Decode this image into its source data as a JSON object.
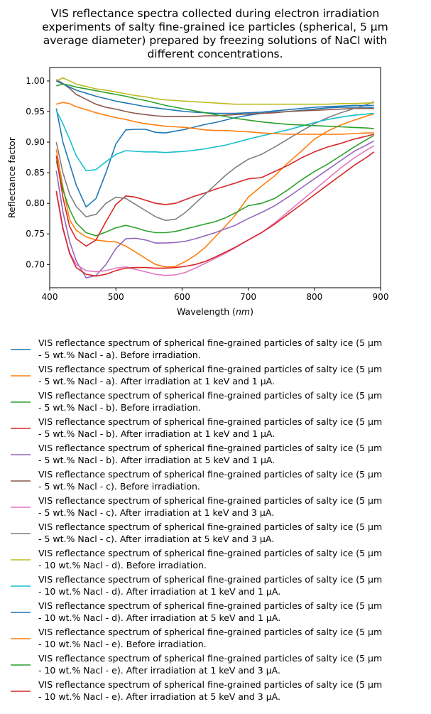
{
  "chart_data": {
    "type": "line",
    "title_lines": [
      "VIS reflectance spectra collected during electron irradiation",
      "experiments of salty fine-grained ice particles (spherical, 5 µm",
      "average diameter) prepared by freezing solutions of NaCl with",
      "different concentrations."
    ],
    "xlabel": "Wavelength (nm)",
    "xlabel_parts": {
      "prefix": "Wavelength (",
      "unit": "nm",
      "suffix": ")"
    },
    "ylabel": "Reflectance factor",
    "xlim": [
      400,
      900
    ],
    "ylim": [
      0.662,
      1.022
    ],
    "xticks": [
      400,
      500,
      600,
      700,
      800,
      900
    ],
    "yticks": [
      0.7,
      0.75,
      0.8,
      0.85,
      0.9,
      0.95,
      1.0
    ],
    "ytick_labels": [
      "0.70",
      "0.75",
      "0.80",
      "0.85",
      "0.90",
      "0.95",
      "1.00"
    ],
    "grid": false,
    "legend_position": "below",
    "series": [
      {
        "name_lines": [
          "VIS reflectance spectrum of spherical fine-grained particles of salty ice (5 µm",
          "- 5 wt.% Nacl - a). Before irradiation."
        ],
        "color": "#1f77b4",
        "x": [
          410,
          420,
          430,
          440,
          455,
          470,
          485,
          500,
          515,
          530,
          545,
          560,
          575,
          590,
          605,
          620,
          635,
          650,
          665,
          680,
          700,
          720,
          740,
          760,
          780,
          800,
          820,
          840,
          860,
          880,
          890
        ],
        "y": [
          0.955,
          0.9,
          0.865,
          0.83,
          0.794,
          0.808,
          0.85,
          0.897,
          0.92,
          0.921,
          0.921,
          0.916,
          0.915,
          0.918,
          0.921,
          0.925,
          0.929,
          0.932,
          0.936,
          0.94,
          0.944,
          0.947,
          0.949,
          0.95,
          0.952,
          0.954,
          0.956,
          0.957,
          0.957,
          0.957,
          0.956
        ]
      },
      {
        "name_lines": [
          "VIS reflectance spectrum of spherical fine-grained particles of salty ice (5 µm",
          "- 5 wt.% Nacl - a). After irradiation at 1 keV and 1 µA."
        ],
        "color": "#ff7f0e",
        "x": [
          410,
          420,
          430,
          440,
          455,
          470,
          485,
          500,
          515,
          530,
          545,
          560,
          575,
          590,
          605,
          620,
          635,
          650,
          665,
          680,
          700,
          720,
          740,
          760,
          780,
          800,
          820,
          840,
          860,
          880,
          890
        ],
        "y": [
          0.888,
          0.827,
          0.773,
          0.756,
          0.745,
          0.74,
          0.738,
          0.737,
          0.73,
          0.72,
          0.71,
          0.7,
          0.696,
          0.697,
          0.705,
          0.715,
          0.728,
          0.745,
          0.762,
          0.78,
          0.81,
          0.828,
          0.845,
          0.866,
          0.885,
          0.905,
          0.918,
          0.928,
          0.936,
          0.943,
          0.946
        ]
      },
      {
        "name_lines": [
          "VIS reflectance spectrum of spherical fine-grained particles of salty ice (5 µm",
          "- 5 wt.% Nacl - b). Before irradiation."
        ],
        "color": "#2ca02c",
        "x": [
          410,
          420,
          430,
          440,
          455,
          470,
          485,
          500,
          515,
          530,
          545,
          560,
          575,
          590,
          605,
          620,
          635,
          650,
          665,
          680,
          700,
          720,
          740,
          760,
          780,
          800,
          820,
          840,
          860,
          880,
          890
        ],
        "y": [
          0.87,
          0.822,
          0.79,
          0.768,
          0.752,
          0.747,
          0.753,
          0.76,
          0.764,
          0.76,
          0.755,
          0.752,
          0.752,
          0.754,
          0.758,
          0.762,
          0.766,
          0.77,
          0.776,
          0.784,
          0.796,
          0.8,
          0.808,
          0.822,
          0.838,
          0.852,
          0.864,
          0.878,
          0.892,
          0.905,
          0.911
        ]
      },
      {
        "name_lines": [
          "VIS reflectance spectrum of spherical fine-grained particles of salty ice (5 µm",
          "- 5 wt.% Nacl - b). After irradiation at 1 keV and 1 µA."
        ],
        "color": "#d62728",
        "x": [
          410,
          420,
          430,
          440,
          455,
          470,
          485,
          500,
          515,
          530,
          545,
          560,
          575,
          590,
          605,
          620,
          635,
          650,
          665,
          680,
          700,
          720,
          740,
          760,
          780,
          800,
          820,
          840,
          860,
          880,
          890
        ],
        "y": [
          0.878,
          0.81,
          0.762,
          0.742,
          0.73,
          0.74,
          0.77,
          0.798,
          0.812,
          0.81,
          0.805,
          0.8,
          0.798,
          0.8,
          0.806,
          0.812,
          0.817,
          0.823,
          0.828,
          0.833,
          0.84,
          0.842,
          0.852,
          0.862,
          0.874,
          0.884,
          0.892,
          0.898,
          0.905,
          0.91,
          0.913
        ]
      },
      {
        "name_lines": [
          "VIS reflectance spectrum of spherical fine-grained particles of salty ice (5 µm",
          "- 5 wt.% Nacl - b). After irradiation at 5 keV and 1 µA."
        ],
        "color": "#9467bd",
        "x": [
          410,
          420,
          430,
          440,
          455,
          470,
          485,
          500,
          515,
          530,
          545,
          560,
          575,
          590,
          605,
          620,
          635,
          650,
          665,
          680,
          700,
          720,
          740,
          760,
          780,
          800,
          820,
          840,
          860,
          880,
          890
        ],
        "y": [
          0.853,
          0.786,
          0.738,
          0.706,
          0.678,
          0.682,
          0.7,
          0.726,
          0.742,
          0.743,
          0.74,
          0.735,
          0.735,
          0.736,
          0.738,
          0.742,
          0.747,
          0.752,
          0.758,
          0.764,
          0.775,
          0.785,
          0.796,
          0.81,
          0.825,
          0.84,
          0.855,
          0.87,
          0.885,
          0.896,
          0.902
        ]
      },
      {
        "name_lines": [
          "VIS reflectance spectrum of spherical fine-grained particles of salty ice (5 µm",
          "- 5 wt.% Nacl - c). Before irradiation."
        ],
        "color": "#8c564b",
        "x": [
          410,
          420,
          430,
          440,
          455,
          470,
          485,
          500,
          515,
          530,
          545,
          560,
          575,
          590,
          605,
          620,
          635,
          650,
          665,
          680,
          700,
          720,
          740,
          760,
          780,
          800,
          820,
          840,
          860,
          880,
          890
        ],
        "y": [
          1.002,
          0.996,
          0.988,
          0.978,
          0.97,
          0.962,
          0.957,
          0.954,
          0.95,
          0.947,
          0.945,
          0.943,
          0.942,
          0.942,
          0.942,
          0.942,
          0.943,
          0.943,
          0.944,
          0.945,
          0.946,
          0.947,
          0.948,
          0.95,
          0.951,
          0.952,
          0.953,
          0.954,
          0.955,
          0.955,
          0.955
        ]
      },
      {
        "name_lines": [
          "VIS reflectance spectrum of spherical fine-grained particles of salty ice (5 µm",
          "- 5 wt.% Nacl - c). After irradiation at 1 keV and 3 µA."
        ],
        "color": "#e377c2",
        "x": [
          410,
          420,
          430,
          440,
          455,
          470,
          485,
          500,
          515,
          530,
          545,
          560,
          575,
          590,
          605,
          620,
          635,
          650,
          665,
          680,
          700,
          720,
          740,
          760,
          780,
          800,
          820,
          840,
          860,
          880,
          890
        ],
        "y": [
          0.818,
          0.757,
          0.72,
          0.7,
          0.69,
          0.688,
          0.69,
          0.694,
          0.696,
          0.692,
          0.688,
          0.684,
          0.682,
          0.683,
          0.687,
          0.694,
          0.702,
          0.71,
          0.718,
          0.727,
          0.74,
          0.752,
          0.768,
          0.786,
          0.804,
          0.822,
          0.84,
          0.858,
          0.874,
          0.888,
          0.894
        ]
      },
      {
        "name_lines": [
          "VIS reflectance spectrum of spherical fine-grained particles of salty ice (5 µm",
          "- 5 wt.% Nacl - c). After irradiation at 5 keV and 3 µA."
        ],
        "color": "#7f7f7f",
        "x": [
          410,
          420,
          430,
          440,
          455,
          470,
          485,
          500,
          515,
          530,
          545,
          560,
          575,
          590,
          605,
          620,
          635,
          650,
          665,
          680,
          700,
          720,
          740,
          760,
          780,
          800,
          820,
          840,
          860,
          880,
          890
        ],
        "y": [
          0.9,
          0.85,
          0.815,
          0.795,
          0.778,
          0.782,
          0.8,
          0.81,
          0.808,
          0.798,
          0.788,
          0.778,
          0.772,
          0.774,
          0.785,
          0.8,
          0.815,
          0.83,
          0.845,
          0.858,
          0.872,
          0.88,
          0.892,
          0.905,
          0.918,
          0.93,
          0.94,
          0.948,
          0.955,
          0.962,
          0.966
        ]
      },
      {
        "name_lines": [
          "VIS reflectance spectrum of spherical fine-grained particles of salty ice (5 µm",
          "- 10 wt.% Nacl - d). Before irradiation."
        ],
        "color": "#bcbd22",
        "x": [
          410,
          420,
          430,
          440,
          455,
          470,
          485,
          500,
          515,
          530,
          545,
          560,
          575,
          590,
          605,
          620,
          635,
          650,
          665,
          680,
          700,
          720,
          740,
          760,
          780,
          800,
          820,
          840,
          860,
          880,
          890
        ],
        "y": [
          1.0,
          1.005,
          1.0,
          0.995,
          0.991,
          0.987,
          0.985,
          0.982,
          0.979,
          0.976,
          0.974,
          0.971,
          0.969,
          0.968,
          0.967,
          0.966,
          0.965,
          0.964,
          0.963,
          0.962,
          0.962,
          0.962,
          0.962,
          0.962,
          0.962,
          0.962,
          0.962,
          0.963,
          0.963,
          0.964,
          0.964
        ]
      },
      {
        "name_lines": [
          "VIS reflectance spectrum of spherical fine-grained particles of salty ice (5 µm",
          "- 10 wt.% Nacl - d). After irradiation at 1 keV and 1 µA."
        ],
        "color": "#17becf",
        "x": [
          410,
          420,
          430,
          440,
          455,
          470,
          485,
          500,
          515,
          530,
          545,
          560,
          575,
          590,
          605,
          620,
          635,
          650,
          665,
          680,
          700,
          720,
          740,
          760,
          780,
          800,
          820,
          840,
          860,
          880,
          890
        ],
        "y": [
          0.952,
          0.93,
          0.905,
          0.878,
          0.853,
          0.855,
          0.868,
          0.88,
          0.886,
          0.885,
          0.884,
          0.884,
          0.883,
          0.884,
          0.885,
          0.887,
          0.889,
          0.892,
          0.895,
          0.899,
          0.905,
          0.91,
          0.915,
          0.92,
          0.926,
          0.932,
          0.937,
          0.941,
          0.944,
          0.946,
          0.947
        ]
      },
      {
        "name_lines": [
          "VIS reflectance spectrum of spherical fine-grained particles of salty ice (5 µm",
          "- 10 wt.% Nacl - d). After irradiation at 5 keV and 1 µA."
        ],
        "color": "#1f77b4",
        "x": [
          410,
          420,
          430,
          440,
          455,
          470,
          485,
          500,
          515,
          530,
          545,
          560,
          575,
          590,
          605,
          620,
          635,
          650,
          665,
          680,
          700,
          720,
          740,
          760,
          780,
          800,
          820,
          840,
          860,
          880,
          890
        ],
        "y": [
          1.0,
          0.995,
          0.99,
          0.985,
          0.98,
          0.975,
          0.971,
          0.967,
          0.964,
          0.961,
          0.958,
          0.956,
          0.954,
          0.952,
          0.95,
          0.949,
          0.948,
          0.947,
          0.947,
          0.947,
          0.948,
          0.949,
          0.951,
          0.953,
          0.955,
          0.957,
          0.958,
          0.959,
          0.96,
          0.96,
          0.96
        ]
      },
      {
        "name_lines": [
          "VIS reflectance spectrum of spherical fine-grained particles of salty ice (5 µm",
          "- 10 wt.% Nacl - e). Before irradiation."
        ],
        "color": "#ff7f0e",
        "x": [
          410,
          420,
          430,
          440,
          455,
          470,
          485,
          500,
          515,
          530,
          545,
          560,
          575,
          590,
          605,
          620,
          635,
          650,
          665,
          680,
          700,
          720,
          740,
          760,
          780,
          800,
          820,
          840,
          860,
          880,
          890
        ],
        "y": [
          0.962,
          0.965,
          0.963,
          0.958,
          0.953,
          0.948,
          0.944,
          0.94,
          0.937,
          0.933,
          0.93,
          0.928,
          0.926,
          0.925,
          0.924,
          0.922,
          0.92,
          0.919,
          0.919,
          0.918,
          0.917,
          0.915,
          0.914,
          0.913,
          0.913,
          0.913,
          0.913,
          0.913,
          0.914,
          0.915,
          0.915
        ]
      },
      {
        "name_lines": [
          "VIS reflectance spectrum of spherical fine-grained particles of salty ice (5 µm",
          "- 10 wt.% Nacl - e). After irradiation at 1 keV and 3 µA."
        ],
        "color": "#2ca02c",
        "x": [
          410,
          420,
          430,
          440,
          455,
          470,
          485,
          500,
          515,
          530,
          545,
          560,
          575,
          590,
          605,
          620,
          635,
          650,
          665,
          680,
          700,
          720,
          740,
          760,
          780,
          800,
          820,
          840,
          860,
          880,
          890
        ],
        "y": [
          0.992,
          0.995,
          0.993,
          0.99,
          0.987,
          0.984,
          0.981,
          0.978,
          0.975,
          0.971,
          0.968,
          0.964,
          0.96,
          0.957,
          0.954,
          0.951,
          0.948,
          0.945,
          0.942,
          0.939,
          0.936,
          0.933,
          0.931,
          0.929,
          0.928,
          0.927,
          0.926,
          0.925,
          0.924,
          0.923,
          0.922
        ]
      },
      {
        "name_lines": [
          "VIS reflectance spectrum of spherical fine-grained particles of salty ice (5 µm",
          "- 10 wt.% Nacl - e). After irradiation at 5 keV and 3 µA."
        ],
        "color": "#d62728",
        "x": [
          410,
          420,
          430,
          440,
          455,
          470,
          485,
          500,
          515,
          530,
          545,
          560,
          575,
          590,
          605,
          620,
          635,
          650,
          665,
          680,
          700,
          720,
          740,
          760,
          780,
          800,
          820,
          840,
          860,
          880,
          890
        ],
        "y": [
          0.82,
          0.76,
          0.718,
          0.695,
          0.684,
          0.681,
          0.684,
          0.69,
          0.694,
          0.695,
          0.695,
          0.694,
          0.694,
          0.695,
          0.697,
          0.7,
          0.705,
          0.712,
          0.72,
          0.728,
          0.74,
          0.752,
          0.766,
          0.782,
          0.798,
          0.814,
          0.83,
          0.846,
          0.862,
          0.876,
          0.884
        ]
      }
    ]
  }
}
